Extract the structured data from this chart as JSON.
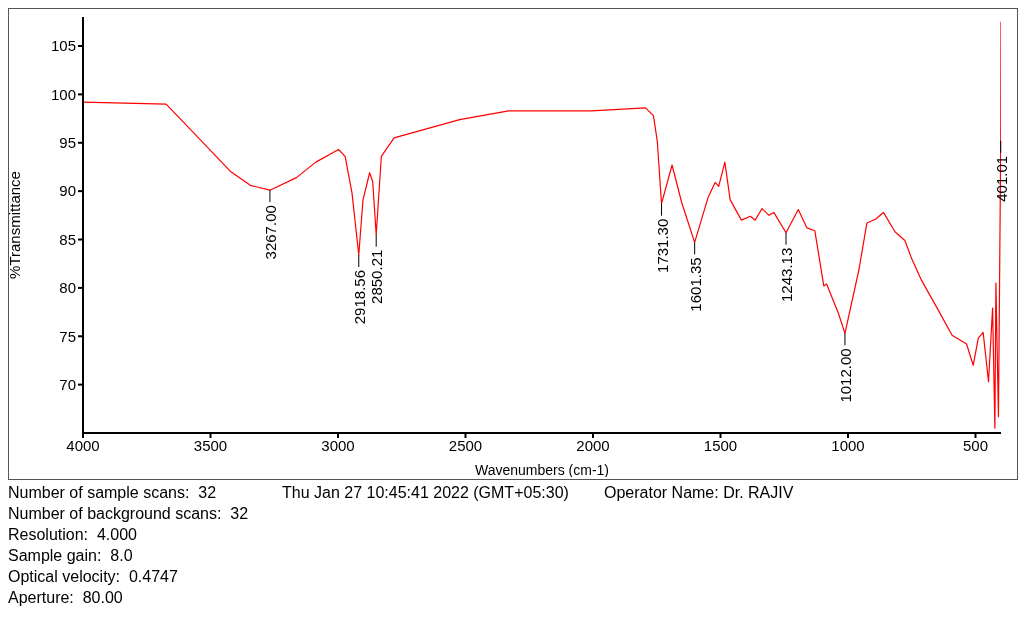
{
  "chart_data": {
    "type": "line",
    "xlabel": "Wavenumbers (cm-1)",
    "ylabel": "%Transmittance",
    "xlim": [
      4000,
      400
    ],
    "ylim": [
      65,
      108
    ],
    "xticks": [
      4000,
      3500,
      3000,
      2500,
      2000,
      1500,
      1000,
      500
    ],
    "yticks": [
      70,
      75,
      80,
      85,
      90,
      95,
      100,
      105
    ],
    "grid": false,
    "legend": false,
    "marker": "none",
    "line_style": "solid",
    "series": [
      {
        "color": "#ff0000",
        "x": [
          4000,
          3674,
          3547,
          3420,
          3344,
          3267,
          3163,
          3087,
          2998,
          2972,
          2945,
          2918.56,
          2902,
          2876,
          2864,
          2850.21,
          2830,
          2780,
          2523,
          2331,
          2005,
          1794,
          1763,
          1748,
          1731.3,
          1690,
          1652,
          1601.35,
          1548,
          1521,
          1507,
          1483,
          1462,
          1418,
          1383,
          1364,
          1337,
          1310,
          1291,
          1243.13,
          1195,
          1161,
          1130,
          1095,
          1084,
          1038,
          1012,
          957,
          926,
          892,
          861,
          816,
          777,
          750,
          712,
          646,
          592,
          535,
          509,
          489,
          470,
          449,
          433,
          424,
          420,
          410,
          401.01,
          400
        ],
        "values": [
          99.2,
          99.0,
          95.5,
          92.0,
          90.6,
          90.1,
          91.4,
          93.0,
          94.3,
          93.6,
          89.8,
          83.4,
          89.1,
          91.9,
          91.0,
          85.5,
          93.6,
          95.5,
          97.4,
          98.3,
          98.3,
          98.6,
          97.8,
          95.2,
          88.7,
          92.7,
          88.8,
          84.7,
          89.4,
          90.9,
          90.5,
          93.0,
          89.1,
          87.0,
          87.4,
          87.0,
          88.2,
          87.5,
          87.8,
          85.7,
          88.1,
          86.2,
          85.9,
          80.2,
          80.4,
          77.4,
          75.3,
          81.9,
          86.7,
          87.1,
          87.8,
          85.8,
          84.9,
          83.0,
          80.8,
          77.7,
          75.1,
          74.2,
          72.0,
          74.8,
          75.4,
          70.3,
          77.9,
          65.5,
          80.5,
          66.7,
          95.2,
          107.5
        ]
      }
    ],
    "annotations": [
      {
        "text": "3267.00",
        "x": 3267,
        "y": 90.1
      },
      {
        "text": "2918.56",
        "x": 2918.56,
        "y": 83.4
      },
      {
        "text": "2850.21",
        "x": 2850.21,
        "y": 85.5
      },
      {
        "text": "1731.30",
        "x": 1731.3,
        "y": 88.7
      },
      {
        "text": "1601.35",
        "x": 1601.35,
        "y": 84.7
      },
      {
        "text": "1243.13",
        "x": 1243.13,
        "y": 85.7
      },
      {
        "text": "1012.00",
        "x": 1012,
        "y": 75.3
      },
      {
        "text": "401.01",
        "x": 401.01,
        "y": 95.2
      },
      "Number of sample scans:  32",
      "Thu Jan 27 10:45:41 2022 (GMT+05:30)",
      "Operator Name: Dr. RAJIV",
      "Number of background scans:  32",
      "Resolution:  4.000",
      "Sample gain:  8.0",
      "Optical velocity:  0.4747",
      "Aperture:  80.00"
    ]
  }
}
